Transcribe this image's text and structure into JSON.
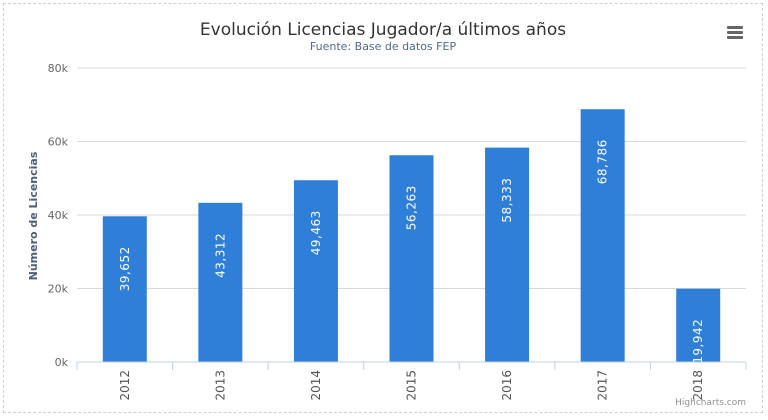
{
  "chart_data": {
    "type": "bar",
    "title": "Evolución Licencias Jugador/a últimos años",
    "subtitle": "Fuente: Base de datos FEP",
    "xlabel": "",
    "ylabel": "Número de Licencias",
    "categories": [
      "2012",
      "2013",
      "2014",
      "2015",
      "2016",
      "2017",
      "2018"
    ],
    "values": [
      39652,
      43312,
      49463,
      56263,
      58333,
      68786,
      19942
    ],
    "data_labels": [
      "39,652",
      "43,312",
      "49,463",
      "56,263",
      "58,333",
      "68,786",
      "19,942"
    ],
    "ylim": [
      0,
      80000
    ],
    "y_ticks": [
      0,
      20000,
      40000,
      60000,
      80000
    ],
    "y_tick_labels": [
      "0k",
      "20k",
      "40k",
      "60k",
      "80k"
    ],
    "grid": true,
    "legend": "none",
    "bar_color": "#2f7ed8"
  },
  "ui": {
    "menu_icon": "hamburger-menu-icon",
    "credits": "Highcharts.com"
  }
}
